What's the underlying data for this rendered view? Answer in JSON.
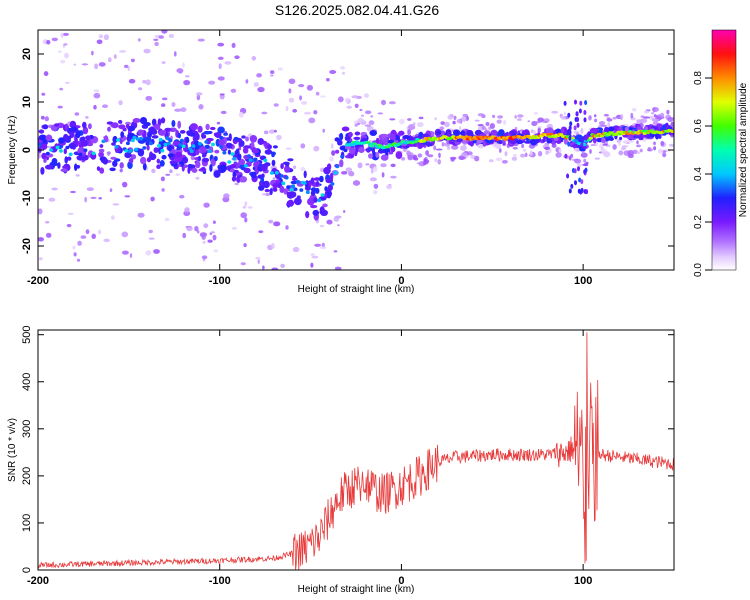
{
  "title": "S126.2025.082.04.41.G26",
  "colors": {
    "snr_line": "#e83a3a",
    "frame": "#000000"
  },
  "chart_data": [
    {
      "type": "heatmap",
      "xlabel": "Height of straight line (km)",
      "ylabel": "Frequency (Hz)",
      "xlim": [
        -200,
        150
      ],
      "ylim": [
        -25,
        25
      ],
      "xticks": [
        -200,
        -100,
        0,
        100
      ],
      "yticks": [
        -20,
        -10,
        0,
        10,
        20
      ],
      "colorbar": {
        "label": "Normalized spectral amplitude",
        "range": [
          0,
          1
        ],
        "ticks": [
          0.0,
          0.2,
          0.4,
          0.6,
          0.8
        ]
      },
      "ridge": {
        "x": [
          -200,
          -170,
          -140,
          -110,
          -90,
          -70,
          -60,
          -50,
          -45,
          -40,
          -35,
          -30,
          -25,
          -20,
          -10,
          0,
          10,
          20,
          40,
          60,
          80,
          90,
          95,
          100,
          105,
          120,
          150
        ],
        "frequency": [
          0.5,
          0.5,
          1.5,
          0.5,
          -1.5,
          -4,
          -7,
          -9,
          -11,
          -8,
          -2,
          1,
          1.5,
          1.5,
          0.5,
          1.5,
          2,
          2.5,
          2.5,
          2.5,
          3,
          3,
          2,
          1,
          3,
          3.5,
          4
        ]
      }
    },
    {
      "type": "line",
      "xlabel": "Height of straight line (km)",
      "ylabel": "SNR (10 * v/v)",
      "xlim": [
        -200,
        150
      ],
      "ylim": [
        0,
        510
      ],
      "xticks": [
        -200,
        -100,
        0,
        100
      ],
      "yticks": [
        0,
        100,
        200,
        300,
        400,
        500
      ],
      "envelope": {
        "x": [
          -200,
          -150,
          -100,
          -70,
          -55,
          -45,
          -40,
          -35,
          -30,
          -25,
          -20,
          -15,
          -10,
          0,
          10,
          20,
          30,
          50,
          80,
          90,
          95,
          98,
          100,
          103,
          106,
          110,
          120,
          150
        ],
        "snr": [
          10,
          15,
          20,
          25,
          40,
          70,
          110,
          150,
          170,
          180,
          190,
          170,
          160,
          180,
          200,
          230,
          240,
          245,
          245,
          250,
          260,
          240,
          230,
          240,
          250,
          245,
          240,
          225
        ]
      }
    }
  ]
}
